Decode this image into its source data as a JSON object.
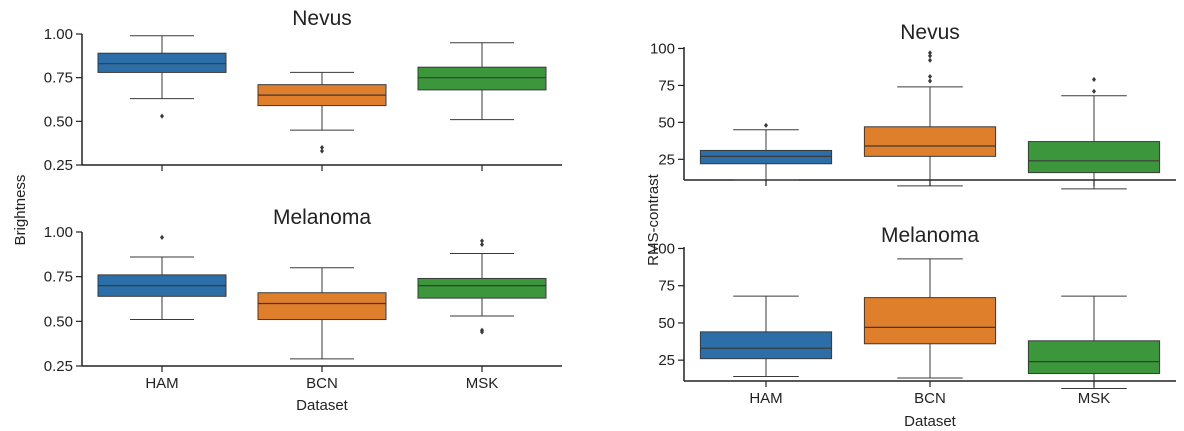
{
  "figure": {
    "left_ylabel": "Brightness",
    "right_ylabel": "RMS-contrast",
    "xlabel": "Dataset"
  },
  "chart_data": [
    {
      "type": "box",
      "title": "Nevus",
      "ylabel": "Brightness",
      "xlabel": "",
      "ylim": [
        0.25,
        1.0
      ],
      "yticks": [
        0.25,
        0.5,
        0.75,
        1.0
      ],
      "ytick_labels": [
        "0.25",
        "0.50",
        "0.75",
        "1.00"
      ],
      "categories": [
        "HAM",
        "BCN",
        "MSK"
      ],
      "show_xticklabels": false,
      "boxes": [
        {
          "category": "HAM",
          "whisker_low": 0.63,
          "q1": 0.78,
          "median": 0.83,
          "q3": 0.89,
          "whisker_high": 0.99,
          "outliers": [
            0.53
          ]
        },
        {
          "category": "BCN",
          "whisker_low": 0.45,
          "q1": 0.59,
          "median": 0.65,
          "q3": 0.71,
          "whisker_high": 0.78,
          "outliers": [
            0.35,
            0.33
          ]
        },
        {
          "category": "MSK",
          "whisker_low": 0.51,
          "q1": 0.68,
          "median": 0.75,
          "q3": 0.81,
          "whisker_high": 0.95,
          "outliers": []
        }
      ]
    },
    {
      "type": "box",
      "title": "Melanoma",
      "ylabel": "Brightness",
      "xlabel": "Dataset",
      "ylim": [
        0.25,
        1.0
      ],
      "yticks": [
        0.25,
        0.5,
        0.75,
        1.0
      ],
      "ytick_labels": [
        "0.25",
        "0.50",
        "0.75",
        "1.00"
      ],
      "categories": [
        "HAM",
        "BCN",
        "MSK"
      ],
      "show_xticklabels": true,
      "boxes": [
        {
          "category": "HAM",
          "whisker_low": 0.51,
          "q1": 0.64,
          "median": 0.7,
          "q3": 0.76,
          "whisker_high": 0.86,
          "outliers": [
            0.97
          ]
        },
        {
          "category": "BCN",
          "whisker_low": 0.29,
          "q1": 0.51,
          "median": 0.6,
          "q3": 0.66,
          "whisker_high": 0.8,
          "outliers": []
        },
        {
          "category": "MSK",
          "whisker_low": 0.53,
          "q1": 0.63,
          "median": 0.7,
          "q3": 0.74,
          "whisker_high": 0.88,
          "outliers": [
            0.95,
            0.93,
            0.45,
            0.44
          ]
        }
      ]
    },
    {
      "type": "box",
      "title": "Nevus",
      "ylabel": "RMS-contrast",
      "xlabel": "",
      "ylim": [
        11,
        101
      ],
      "yticks": [
        25,
        50,
        75,
        100
      ],
      "ytick_labels": [
        "25",
        "50",
        "75",
        "100"
      ],
      "categories": [
        "HAM",
        "BCN",
        "MSK"
      ],
      "show_xticklabels": false,
      "boxes": [
        {
          "category": "HAM",
          "whisker_low": 11,
          "q1": 22,
          "median": 27,
          "q3": 31,
          "whisker_high": 45,
          "outliers": [
            48
          ]
        },
        {
          "category": "BCN",
          "whisker_low": 7,
          "q1": 27,
          "median": 34,
          "q3": 47,
          "whisker_high": 74,
          "outliers": [
            78,
            81,
            92,
            95,
            97
          ]
        },
        {
          "category": "MSK",
          "whisker_low": 5,
          "q1": 16,
          "median": 24,
          "q3": 37,
          "whisker_high": 68,
          "outliers": [
            71,
            79
          ]
        }
      ]
    },
    {
      "type": "box",
      "title": "Melanoma",
      "ylabel": "RMS-contrast",
      "xlabel": "Dataset",
      "ylim": [
        11,
        101
      ],
      "yticks": [
        25,
        50,
        75,
        100
      ],
      "ytick_labels": [
        "25",
        "50",
        "75",
        "100"
      ],
      "categories": [
        "HAM",
        "BCN",
        "MSK"
      ],
      "show_xticklabels": true,
      "boxes": [
        {
          "category": "HAM",
          "whisker_low": 14,
          "q1": 26,
          "median": 33,
          "q3": 44,
          "whisker_high": 68,
          "outliers": []
        },
        {
          "category": "BCN",
          "whisker_low": 13,
          "q1": 36,
          "median": 47,
          "q3": 67,
          "whisker_high": 93,
          "outliers": []
        },
        {
          "category": "MSK",
          "whisker_low": 6,
          "q1": 16,
          "median": 24,
          "q3": 38,
          "whisker_high": 68,
          "outliers": []
        }
      ]
    }
  ],
  "colors": {
    "HAM": "#2b6ea8",
    "BCN": "#e07f2b",
    "MSK": "#3c963c",
    "line": "#3a3a3a",
    "axis": "#222222"
  }
}
